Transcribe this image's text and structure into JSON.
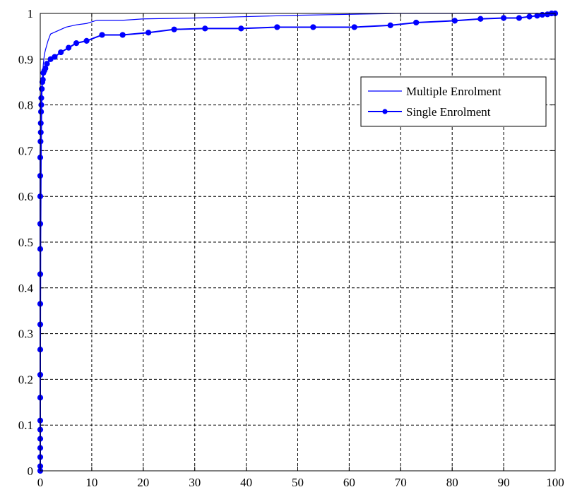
{
  "chart_data": {
    "type": "line",
    "title": "",
    "xlabel": "",
    "ylabel": "",
    "xlim": [
      0,
      100
    ],
    "ylim": [
      0,
      1
    ],
    "xticks": [
      "0",
      "10",
      "20",
      "30",
      "40",
      "50",
      "60",
      "70",
      "80",
      "90",
      "100"
    ],
    "yticks": [
      "0",
      "0.1",
      "0.2",
      "0.3",
      "0.4",
      "0.5",
      "0.6",
      "0.7",
      "0.8",
      "0.9",
      "1"
    ],
    "grid": true,
    "legend_position": "right",
    "series": [
      {
        "name": "Multiple Enrolment",
        "color": "#0000ff",
        "marker": "none",
        "x": [
          0,
          0.1,
          0.2,
          0.3,
          0.4,
          0.6,
          0.8,
          1.0,
          1.5,
          2.0,
          3.0,
          4.0,
          5.0,
          7.0,
          9.0,
          11.0,
          16.0,
          20.0,
          30.0,
          40.0,
          50.0,
          60.0,
          70.0,
          80.0,
          90.0,
          95.0,
          100.0
        ],
        "y": [
          0,
          0.5,
          0.7,
          0.8,
          0.86,
          0.89,
          0.91,
          0.92,
          0.94,
          0.955,
          0.96,
          0.965,
          0.97,
          0.975,
          0.978,
          0.985,
          0.985,
          0.988,
          0.99,
          0.993,
          0.996,
          0.998,
          1.0,
          1.0,
          1.0,
          1.0,
          1.0
        ]
      },
      {
        "name": "Single Enrolment",
        "color": "#0000ff",
        "marker": "circle",
        "x": [
          0,
          0,
          0,
          0,
          0,
          0,
          0,
          0,
          0,
          0,
          0,
          0,
          0,
          0,
          0,
          0,
          0,
          0,
          0.05,
          0.1,
          0.1,
          0.15,
          0.2,
          0.2,
          0.3,
          0.4,
          0.5,
          0.6,
          0.8,
          1.0,
          1.3,
          2.0,
          2.8,
          4.0,
          5.5,
          7.0,
          9.0,
          12.0,
          16.0,
          21.0,
          26.0,
          32.0,
          39.0,
          46.0,
          53.0,
          61.0,
          68.0,
          73.0,
          80.5,
          85.5,
          90.0,
          93.0,
          95.0,
          96.5,
          97.5,
          98.5,
          99.3,
          100.0
        ],
        "y": [
          0.0,
          0.01,
          0.03,
          0.05,
          0.07,
          0.09,
          0.11,
          0.16,
          0.21,
          0.265,
          0.32,
          0.365,
          0.43,
          0.485,
          0.54,
          0.6,
          0.645,
          0.685,
          0.72,
          0.74,
          0.76,
          0.785,
          0.8,
          0.815,
          0.835,
          0.85,
          0.855,
          0.87,
          0.875,
          0.88,
          0.89,
          0.9,
          0.905,
          0.915,
          0.925,
          0.935,
          0.94,
          0.953,
          0.953,
          0.958,
          0.965,
          0.967,
          0.967,
          0.97,
          0.97,
          0.97,
          0.974,
          0.98,
          0.984,
          0.988,
          0.99,
          0.99,
          0.993,
          0.995,
          0.997,
          0.998,
          1.0,
          1.0
        ]
      }
    ]
  }
}
